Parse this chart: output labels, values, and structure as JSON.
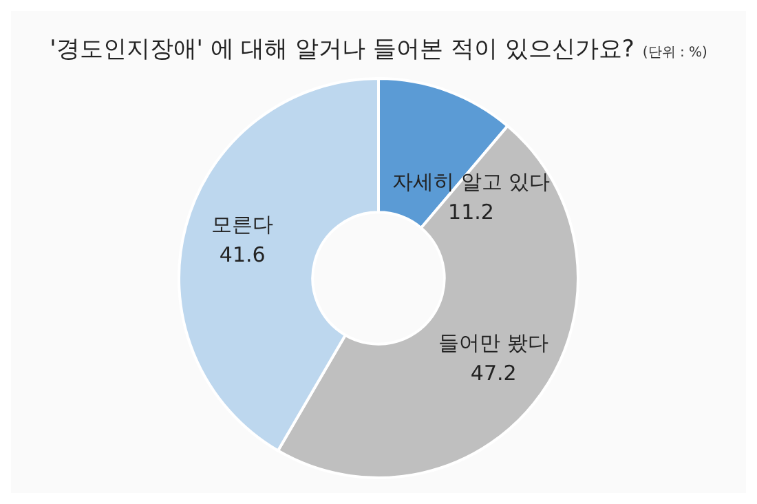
{
  "chart_data": {
    "type": "donut",
    "title": "'경도인지장애' 에 대해 알거나 들어본 적이 있으신가요?",
    "subtitle": "(단위 : %)",
    "categories": [
      "자세히 알고 있다",
      "들어만 봤다",
      "모른다"
    ],
    "values": [
      11.2,
      47.2,
      41.6
    ],
    "colors": [
      "#5b9bd5",
      "#bfbfbf",
      "#bdd7ee"
    ],
    "data_labels": true,
    "legend": false
  }
}
